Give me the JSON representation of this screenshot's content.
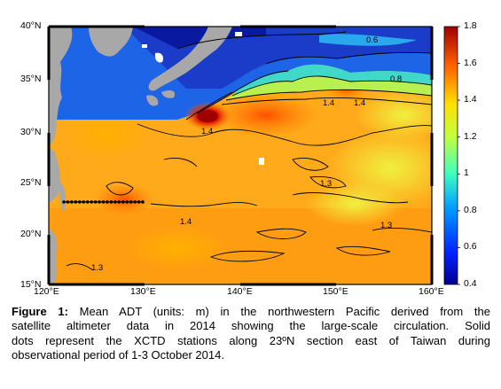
{
  "map": {
    "lat_labels": [
      "40°N",
      "35°N",
      "30°N",
      "25°N",
      "20°N",
      "15°N"
    ],
    "lon_labels": [
      "120°E",
      "130°E",
      "140°E",
      "150°E",
      "160°E"
    ],
    "contour_labels": [
      "0.6",
      "0.8",
      "1.4",
      "1.4",
      "1.4",
      "1.3",
      "1.3",
      "1.4",
      "1.3"
    ],
    "colorbar": {
      "ticks": [
        "1.8",
        "1.6",
        "1.4",
        "1.2",
        "1",
        "0.8",
        "0.6",
        "0.4"
      ],
      "min": 0.4,
      "max": 1.8,
      "colormap": "jet"
    },
    "extent": {
      "lon": [
        120,
        160
      ],
      "lat": [
        15,
        40
      ]
    },
    "section_latitude_N": 23,
    "colors": {
      "land": "#a8a8a8",
      "stations": "#000000"
    }
  },
  "caption": {
    "label": "Figure 1:",
    "line1": " Mean ADT (units: m) in the northwestern Pacific derived from the",
    "line2": "satellite altimeter data in 2014 showing the large-scale circulation. Solid",
    "line3": "dots represent the XCTD stations along 23ºN section east of Taiwan during",
    "line4": "observational period of 1-3 October 2014."
  }
}
